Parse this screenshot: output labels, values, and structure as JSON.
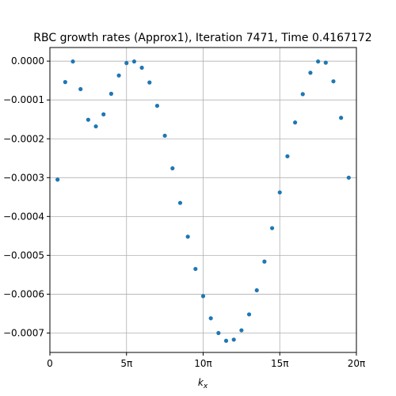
{
  "chart_data": {
    "type": "scatter",
    "title": "RBC growth rates (Approx1), Iteration 7471, Time 0.4167172",
    "xlabel": "k_x",
    "ylabel": "",
    "x_unit": "π",
    "xlim": [
      0,
      20
    ],
    "ylim": [
      -0.00075,
      3.5e-05
    ],
    "grid": true,
    "marker_color": "#1f77b4",
    "x_ticks": [
      {
        "value": 0,
        "label": "0"
      },
      {
        "value": 5,
        "label": "5π"
      },
      {
        "value": 10,
        "label": "10π"
      },
      {
        "value": 15,
        "label": "15π"
      },
      {
        "value": 20,
        "label": "20π"
      }
    ],
    "y_ticks": [
      {
        "value": 0.0,
        "label": "0.0000"
      },
      {
        "value": -0.0001,
        "label": "−0.0001"
      },
      {
        "value": -0.0002,
        "label": "−0.0002"
      },
      {
        "value": -0.0003,
        "label": "−0.0003"
      },
      {
        "value": -0.0004,
        "label": "−0.0004"
      },
      {
        "value": -0.0005,
        "label": "−0.0005"
      },
      {
        "value": -0.0006,
        "label": "−0.0006"
      },
      {
        "value": -0.0007,
        "label": "−0.0007"
      }
    ],
    "series": [
      {
        "x": [
          0.5,
          1.0,
          1.5,
          2.0,
          2.5,
          3.0,
          3.5,
          4.0,
          4.5,
          5.0,
          5.5,
          6.0,
          6.5,
          7.0,
          7.5,
          8.0,
          8.5,
          9.0,
          9.5,
          10.0,
          10.5,
          11.0,
          11.5,
          12.0,
          12.5,
          13.0,
          13.5,
          14.0,
          14.5,
          15.0,
          15.5,
          16.0,
          16.5,
          17.0,
          17.5,
          18.0,
          18.5,
          19.0,
          19.5
        ],
        "y": [
          -0.000305,
          -5.4e-05,
          -1e-06,
          -7.2e-05,
          -0.000151,
          -0.000168,
          -0.000137,
          -8.4e-05,
          -3.7e-05,
          -5e-06,
          -1e-06,
          -1.7e-05,
          -5.5e-05,
          -0.000115,
          -0.000192,
          -0.000276,
          -0.000365,
          -0.000452,
          -0.000535,
          -0.000605,
          -0.000662,
          -0.0007,
          -0.00072,
          -0.000717,
          -0.000693,
          -0.000652,
          -0.00059,
          -0.000516,
          -0.00043,
          -0.000338,
          -0.000245,
          -0.000158,
          -8.5e-05,
          -3e-05,
          -1e-06,
          -4e-06,
          -5.2e-05,
          -0.000146,
          -0.0003
        ]
      }
    ]
  }
}
